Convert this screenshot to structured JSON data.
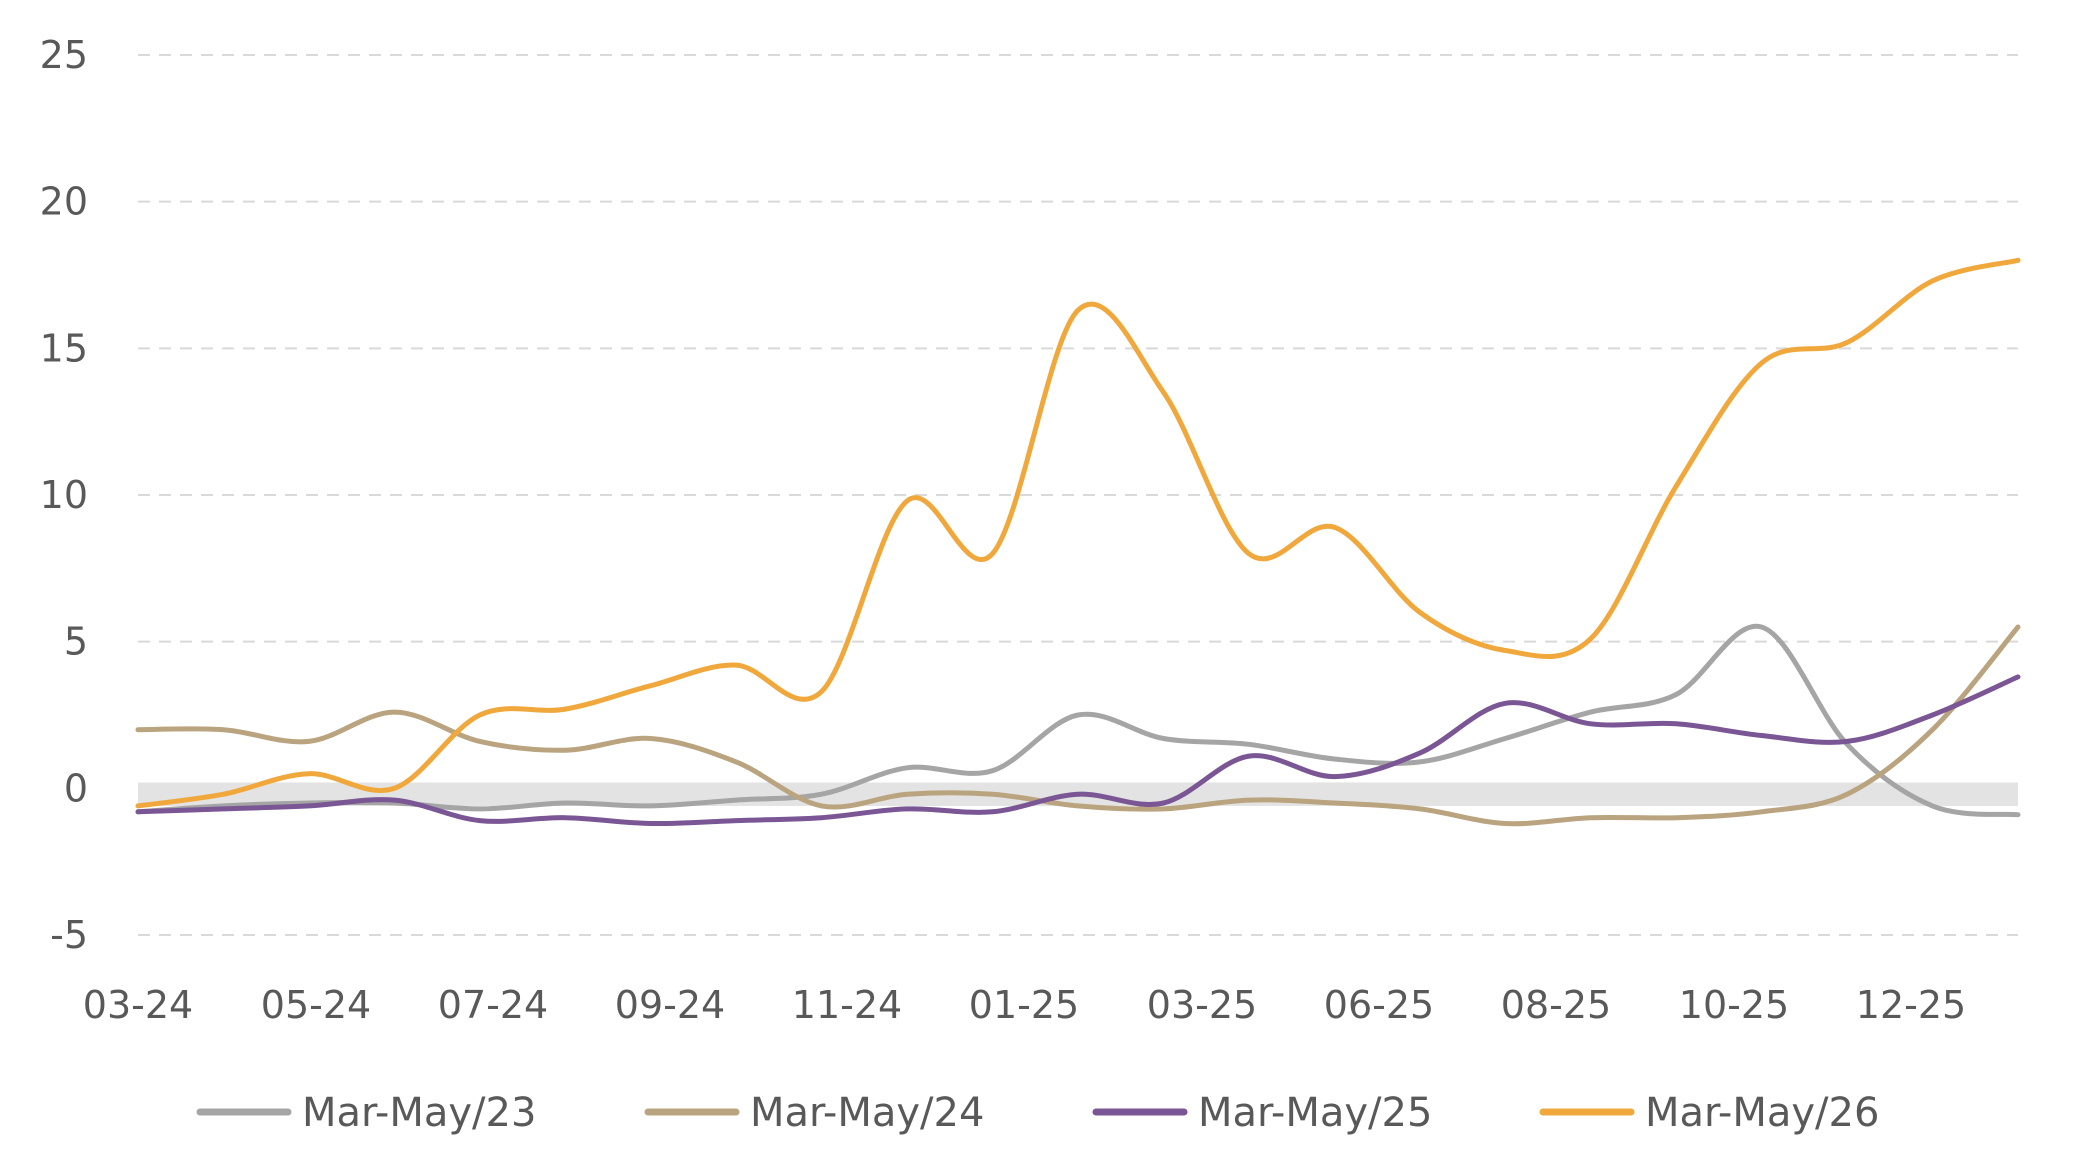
{
  "chart_data": {
    "type": "line",
    "title": "",
    "xlabel": "",
    "ylabel": "",
    "ylim": [
      -5,
      25
    ],
    "yticks": [
      "25",
      "20",
      "15",
      "10",
      "5",
      "0",
      "-5"
    ],
    "xticks": [
      "03-24",
      "05-24",
      "07-24",
      "09-24",
      "11-24",
      "01-25",
      "03-25",
      "06-25",
      "08-25",
      "10-25",
      "12-25"
    ],
    "grid": "horizontal-dashed",
    "legend_position": "bottom",
    "zero_band": true,
    "x": [
      "03-24",
      "04-24",
      "05-24",
      "06-24",
      "07-24",
      "08-24",
      "09-24",
      "10-24",
      "11-24",
      "12-24",
      "01-25",
      "02-25",
      "03-25",
      "04-25",
      "05-25",
      "06-25",
      "07-25",
      "08-25",
      "09-25",
      "10-25",
      "11-25",
      "12-25",
      "01-26"
    ],
    "series": [
      {
        "name": "Mar-May/23",
        "color": "#a5a5a5",
        "values": [
          -0.8,
          -0.6,
          -0.5,
          -0.5,
          -0.7,
          -0.5,
          -0.6,
          -0.4,
          -0.2,
          0.7,
          0.6,
          2.5,
          1.7,
          1.5,
          1.0,
          0.9,
          1.7,
          2.6,
          3.2,
          5.5,
          1.5,
          -0.6,
          -0.9
        ]
      },
      {
        "name": "Mar-May/24",
        "color": "#b9a47f",
        "values": [
          2.0,
          2.0,
          1.6,
          2.6,
          1.6,
          1.3,
          1.7,
          0.9,
          -0.6,
          -0.2,
          -0.2,
          -0.6,
          -0.7,
          -0.4,
          -0.5,
          -0.7,
          -1.2,
          -1.0,
          -1.0,
          -0.8,
          -0.2,
          2.0,
          5.5
        ]
      },
      {
        "name": "Mar-May/25",
        "color": "#7b5694",
        "values": [
          -0.8,
          -0.7,
          -0.6,
          -0.4,
          -1.1,
          -1.0,
          -1.2,
          -1.1,
          -1.0,
          -0.7,
          -0.8,
          -0.2,
          -0.5,
          1.1,
          0.4,
          1.2,
          2.9,
          2.2,
          2.2,
          1.8,
          1.6,
          2.5,
          3.8
        ]
      },
      {
        "name": "Mar-May/26",
        "color": "#f0a83c",
        "values": [
          -0.6,
          -0.2,
          0.5,
          0.0,
          2.5,
          2.7,
          3.5,
          4.2,
          3.3,
          9.8,
          8.0,
          16.3,
          13.5,
          8.0,
          8.9,
          6.0,
          4.7,
          5.1,
          10.3,
          14.5,
          15.2,
          17.3,
          18.0
        ]
      }
    ]
  }
}
